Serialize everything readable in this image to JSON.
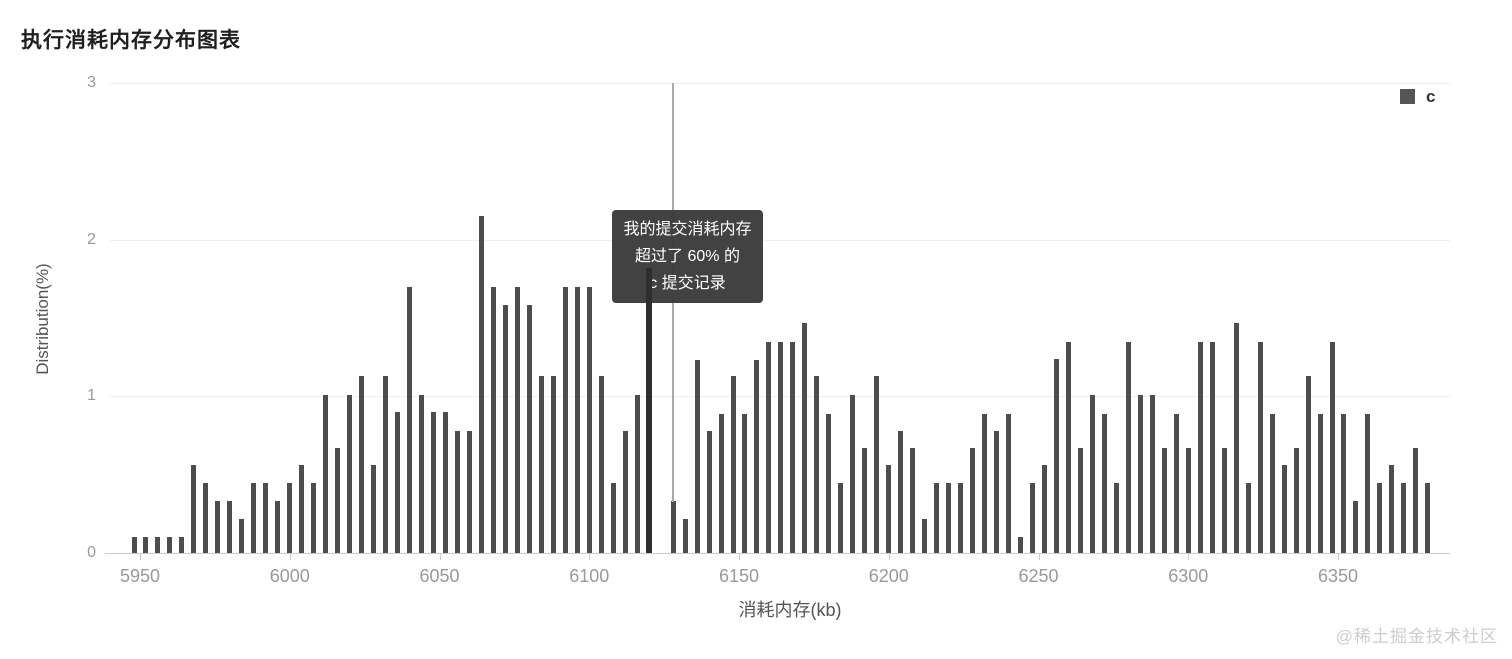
{
  "page": {
    "title": "执行消耗内存分布图表",
    "watermark": "@稀土掘金技术社区"
  },
  "legend": {
    "series_label": "c",
    "swatch_color": "#555555"
  },
  "tooltip": {
    "lines": [
      "我的提交消耗内存",
      "超过了 60% 的",
      "c 提交记录"
    ],
    "bg_color": "#3a3a3a",
    "text_color": "#ffffff"
  },
  "colors": {
    "bar": "#4d4d4d",
    "highlight_bar": "#2e2e2e",
    "grid": "#eeeeee",
    "axis": "#cccccc",
    "tick_text": "#999999"
  },
  "chart_data": {
    "type": "bar",
    "title": "执行消耗内存分布图表",
    "xlabel": "消耗内存(kb)",
    "ylabel": "Distribution(%)",
    "x_ticks": [
      5950,
      6000,
      6050,
      6100,
      6150,
      6200,
      6250,
      6300,
      6350
    ],
    "y_ticks": [
      0,
      1,
      2,
      3
    ],
    "xlim": [
      5940,
      6387
    ],
    "ylim": [
      0,
      3
    ],
    "grid": true,
    "legend_position": "top-right",
    "bin_width_kb": 4,
    "series": [
      {
        "name": "c",
        "x": [
          5948,
          5952,
          5956,
          5960,
          5964,
          5968,
          5972,
          5976,
          5980,
          5984,
          5988,
          5992,
          5996,
          6000,
          6004,
          6008,
          6012,
          6016,
          6020,
          6024,
          6028,
          6032,
          6036,
          6040,
          6044,
          6048,
          6052,
          6056,
          6060,
          6064,
          6068,
          6072,
          6076,
          6080,
          6084,
          6088,
          6092,
          6096,
          6100,
          6104,
          6108,
          6112,
          6116,
          6120,
          6124,
          6128,
          6132,
          6136,
          6140,
          6144,
          6148,
          6152,
          6156,
          6160,
          6164,
          6168,
          6172,
          6176,
          6180,
          6184,
          6188,
          6192,
          6196,
          6200,
          6204,
          6208,
          6212,
          6216,
          6220,
          6224,
          6228,
          6232,
          6236,
          6240,
          6244,
          6248,
          6252,
          6256,
          6260,
          6264,
          6268,
          6272,
          6276,
          6280,
          6284,
          6288,
          6292,
          6296,
          6300,
          6304,
          6308,
          6312,
          6316,
          6320,
          6324,
          6328,
          6332,
          6336,
          6340,
          6344,
          6348,
          6352,
          6356,
          6360,
          6364,
          6368,
          6372,
          6376,
          6380
        ],
        "values": [
          0.1,
          0.1,
          0.1,
          0.1,
          0.1,
          0.56,
          0.45,
          0.33,
          0.33,
          0.22,
          0.45,
          0.45,
          0.33,
          0.45,
          0.56,
          0.45,
          1.01,
          0.67,
          1.01,
          1.13,
          0.56,
          1.13,
          0.9,
          1.7,
          1.01,
          0.9,
          0.9,
          0.78,
          0.78,
          2.15,
          1.7,
          1.58,
          1.7,
          1.58,
          1.13,
          1.13,
          1.7,
          1.7,
          1.7,
          1.13,
          0.45,
          0.78,
          1.01,
          1.82,
          0,
          0.33,
          0.22,
          1.23,
          0.78,
          0.89,
          1.13,
          0.89,
          1.23,
          1.35,
          1.35,
          1.35,
          1.47,
          1.13,
          0.89,
          0.45,
          1.01,
          0.67,
          1.13,
          0.56,
          0.78,
          0.67,
          0.22,
          0.45,
          0.45,
          0.45,
          0.67,
          0.89,
          0.78,
          0.89,
          0.1,
          0.45,
          0.56,
          1.24,
          1.35,
          0.67,
          1.01,
          0.89,
          0.45,
          1.35,
          1.01,
          1.01,
          0.67,
          0.89,
          0.67,
          1.35,
          1.35,
          0.67,
          1.47,
          0.45,
          1.35,
          0.89,
          0.56,
          0.67,
          1.13,
          0.89,
          1.35,
          0.89,
          0.33,
          0.89,
          0.45,
          0.56,
          0.45,
          0.67,
          0.45
        ]
      }
    ],
    "highlight": {
      "x": 6120,
      "value": 1.82
    },
    "crosshair_x": 6128
  }
}
